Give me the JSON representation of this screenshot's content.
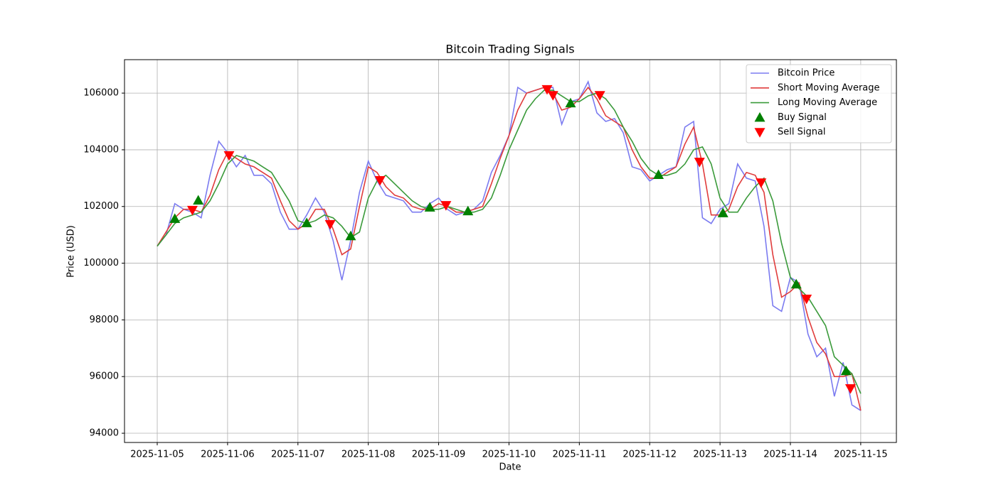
{
  "chart_data": {
    "type": "line",
    "title": "Bitcoin Trading Signals",
    "x_label": "Date",
    "y_label": "Price (USD)",
    "x": [
      "2025-11-05 00:00",
      "2025-11-05 03:00",
      "2025-11-05 06:00",
      "2025-11-05 09:00",
      "2025-11-05 12:00",
      "2025-11-05 15:00",
      "2025-11-05 18:00",
      "2025-11-05 21:00",
      "2025-11-06 00:00",
      "2025-11-06 03:00",
      "2025-11-06 06:00",
      "2025-11-06 09:00",
      "2025-11-06 12:00",
      "2025-11-06 15:00",
      "2025-11-06 18:00",
      "2025-11-06 21:00",
      "2025-11-07 00:00",
      "2025-11-07 03:00",
      "2025-11-07 06:00",
      "2025-11-07 09:00",
      "2025-11-07 12:00",
      "2025-11-07 15:00",
      "2025-11-07 18:00",
      "2025-11-07 21:00",
      "2025-11-08 00:00",
      "2025-11-08 03:00",
      "2025-11-08 06:00",
      "2025-11-08 09:00",
      "2025-11-08 12:00",
      "2025-11-08 15:00",
      "2025-11-08 18:00",
      "2025-11-08 21:00",
      "2025-11-09 00:00",
      "2025-11-09 03:00",
      "2025-11-09 06:00",
      "2025-11-09 09:00",
      "2025-11-09 12:00",
      "2025-11-09 15:00",
      "2025-11-09 18:00",
      "2025-11-09 21:00",
      "2025-11-10 00:00",
      "2025-11-10 03:00",
      "2025-11-10 06:00",
      "2025-11-10 09:00",
      "2025-11-10 12:00",
      "2025-11-10 15:00",
      "2025-11-10 18:00",
      "2025-11-10 21:00",
      "2025-11-11 00:00",
      "2025-11-11 03:00",
      "2025-11-11 06:00",
      "2025-11-11 09:00",
      "2025-11-11 12:00",
      "2025-11-11 15:00",
      "2025-11-11 18:00",
      "2025-11-11 21:00",
      "2025-11-12 00:00",
      "2025-11-12 03:00",
      "2025-11-12 06:00",
      "2025-11-12 09:00",
      "2025-11-12 12:00",
      "2025-11-12 15:00",
      "2025-11-12 18:00",
      "2025-11-12 21:00",
      "2025-11-13 00:00",
      "2025-11-13 03:00",
      "2025-11-13 06:00",
      "2025-11-13 09:00",
      "2025-11-13 12:00",
      "2025-11-13 15:00",
      "2025-11-13 18:00",
      "2025-11-13 21:00",
      "2025-11-14 00:00",
      "2025-11-14 03:00",
      "2025-11-14 06:00",
      "2025-11-14 09:00",
      "2025-11-14 12:00",
      "2025-11-14 15:00",
      "2025-11-14 18:00",
      "2025-11-14 21:00",
      "2025-11-15 00:00"
    ],
    "series": [
      {
        "name": "Bitcoin Price",
        "color": "#7b7bf0",
        "values": [
          100600,
          101000,
          102100,
          101900,
          101800,
          101600,
          103100,
          104300,
          103900,
          103400,
          103800,
          103100,
          103100,
          102800,
          101800,
          101200,
          101200,
          101700,
          102300,
          101800,
          100800,
          99400,
          100800,
          102500,
          103600,
          102900,
          102400,
          102300,
          102200,
          101800,
          101800,
          102100,
          102300,
          101900,
          101700,
          101800,
          101900,
          102200,
          103200,
          103800,
          104500,
          106200,
          106000,
          106100,
          106200,
          106200,
          104900,
          105700,
          105800,
          106400,
          105300,
          105000,
          105100,
          104600,
          103400,
          103300,
          102900,
          103100,
          103300,
          103400,
          104800,
          105000,
          101600,
          101400,
          101900,
          102100,
          103500,
          103000,
          102900,
          101300,
          98500,
          98300,
          99500,
          99300,
          97500,
          96700,
          97000,
          95300,
          96500,
          95000,
          94800
        ]
      },
      {
        "name": "Short Moving Average",
        "color": "#e03c3c",
        "values": [
          100600,
          101100,
          101600,
          101900,
          101900,
          101800,
          102400,
          103300,
          103900,
          103700,
          103500,
          103400,
          103200,
          103000,
          102200,
          101500,
          101200,
          101400,
          101900,
          101900,
          101200,
          100300,
          100500,
          102000,
          103400,
          103200,
          102700,
          102400,
          102300,
          102000,
          101900,
          101900,
          102100,
          102000,
          101800,
          101800,
          101900,
          102000,
          102800,
          103700,
          104500,
          105400,
          106000,
          106100,
          106200,
          106000,
          105400,
          105500,
          105800,
          106200,
          105800,
          105200,
          105000,
          104800,
          104000,
          103400,
          103000,
          103000,
          103200,
          103400,
          104200,
          104800,
          103500,
          101700,
          101700,
          101900,
          102700,
          103200,
          103100,
          102500,
          100300,
          98800,
          99000,
          99300,
          98100,
          97200,
          96800,
          96000,
          96000,
          96100,
          94800
        ]
      },
      {
        "name": "Long Moving Average",
        "color": "#3a9a3a",
        "values": [
          100600,
          101000,
          101400,
          101600,
          101700,
          101800,
          102200,
          102800,
          103500,
          103800,
          103700,
          103600,
          103400,
          103200,
          102700,
          102200,
          101500,
          101400,
          101500,
          101700,
          101600,
          101300,
          100900,
          101100,
          102300,
          102900,
          103100,
          102800,
          102500,
          102200,
          102000,
          101900,
          101900,
          102000,
          101900,
          101800,
          101800,
          101900,
          102300,
          103100,
          104000,
          104700,
          105400,
          105800,
          106100,
          106100,
          105900,
          105700,
          105700,
          105900,
          106000,
          105800,
          105400,
          104800,
          104300,
          103700,
          103300,
          103100,
          103100,
          103200,
          103500,
          104000,
          104100,
          103500,
          102300,
          101800,
          101800,
          102300,
          102700,
          103000,
          102200,
          100700,
          99500,
          99100,
          98800,
          98300,
          97800,
          96700,
          96400,
          96100,
          95400
        ]
      },
      {
        "name": "Buy Signal",
        "color": "#008000",
        "marker": "triangle-up",
        "x": [
          "2025-11-05 06:00",
          "2025-11-05 14:00",
          "2025-11-07 03:00",
          "2025-11-07 18:00",
          "2025-11-08 21:00",
          "2025-11-09 10:00",
          "2025-11-10 21:00",
          "2025-11-12 03:00",
          "2025-11-13 01:00",
          "2025-11-14 02:00",
          "2025-11-14 19:00"
        ],
        "values": [
          101570,
          102220,
          101420,
          100960,
          101970,
          101840,
          105650,
          103120,
          101770,
          99260,
          96200
        ]
      },
      {
        "name": "Sell Signal",
        "color": "#ff0000",
        "marker": "triangle-down",
        "x": [
          "2025-11-05 12:00",
          "2025-11-06 00:30",
          "2025-11-07 11:00",
          "2025-11-08 04:00",
          "2025-11-09 02:30",
          "2025-11-10 13:00",
          "2025-11-10 15:00",
          "2025-11-11 07:00",
          "2025-11-12 17:00",
          "2025-11-13 14:00",
          "2025-11-14 05:30",
          "2025-11-14 20:30"
        ],
        "values": [
          101870,
          103800,
          101370,
          102920,
          102040,
          106130,
          105920,
          105920,
          103570,
          102840,
          98740,
          95580
        ]
      }
    ],
    "xlim": [
      "2025-11-04 12:50",
      "2025-11-15 12:10"
    ],
    "xticks": [
      "2025-11-05",
      "2025-11-06",
      "2025-11-07",
      "2025-11-08",
      "2025-11-09",
      "2025-11-10",
      "2025-11-11",
      "2025-11-12",
      "2025-11-13",
      "2025-11-14",
      "2025-11-15"
    ],
    "ylim": [
      93675,
      107180
    ],
    "yticks": [
      94000,
      96000,
      98000,
      100000,
      102000,
      104000,
      106000
    ],
    "grid": true,
    "legend": "upper right"
  }
}
